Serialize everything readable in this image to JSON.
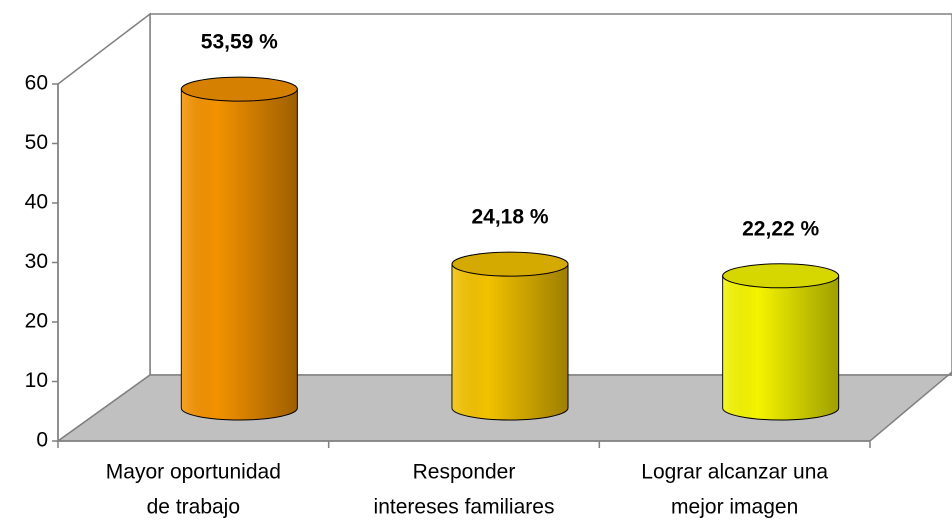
{
  "chart_data": {
    "type": "bar",
    "categories": [
      [
        "Mayor oportunidad",
        "de trabajo"
      ],
      [
        "Responder",
        "intereses familiares"
      ],
      [
        "Lograr alcanzar una",
        "mejor imagen"
      ]
    ],
    "series": [
      {
        "values": [
          53.59,
          24.18,
          22.22
        ],
        "value_labels": [
          "53,59 %",
          "24,18 %",
          "22,22 %"
        ],
        "colors": [
          "#f39200",
          "#f2c200",
          "#f4f400"
        ]
      }
    ],
    "ylim": [
      0,
      60
    ],
    "yticks": [
      0,
      10,
      20,
      30,
      40,
      50,
      60
    ]
  }
}
